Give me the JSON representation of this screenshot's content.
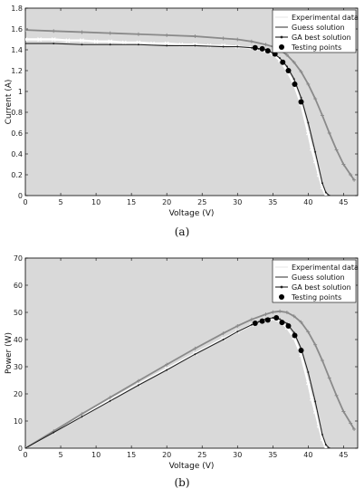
{
  "chart_data": [
    {
      "type": "line",
      "caption": "(a)",
      "xlabel": "Voltage (V)",
      "ylabel": "Current (A)",
      "xlim": [
        0,
        47
      ],
      "ylim": [
        0,
        1.8
      ],
      "xticks": [
        0,
        5,
        10,
        15,
        20,
        25,
        30,
        35,
        40,
        45
      ],
      "yticks": [
        0,
        0.2,
        0.4,
        0.6,
        0.8,
        1,
        1.2,
        1.4,
        1.6,
        1.8
      ],
      "ytick_labels": [
        "0",
        "0.2",
        "0.4",
        "0.6",
        "0.8",
        "1",
        "1.2",
        "1.4",
        "1.6",
        "1.8"
      ],
      "grid": false,
      "legend_position": "top-right",
      "series": [
        {
          "name": "Experimental data",
          "color": "#ffffff",
          "marker": "x",
          "x": [
            0,
            2,
            4,
            6,
            8,
            10,
            12,
            14,
            16,
            18,
            20,
            22,
            24,
            26,
            28,
            30,
            32,
            33,
            34,
            35,
            36,
            37,
            38,
            39,
            40,
            40.5,
            41,
            41.5,
            42,
            42.5
          ],
          "y": [
            1.5,
            1.5,
            1.5,
            1.49,
            1.49,
            1.48,
            1.48,
            1.47,
            1.47,
            1.46,
            1.46,
            1.45,
            1.45,
            1.44,
            1.44,
            1.43,
            1.42,
            1.41,
            1.39,
            1.36,
            1.3,
            1.2,
            1.07,
            0.88,
            0.6,
            0.45,
            0.33,
            0.2,
            0.08,
            0
          ]
        },
        {
          "name": "Guess solution",
          "color": "#8a8a8a",
          "marker": "+",
          "x": [
            0,
            4,
            8,
            12,
            16,
            20,
            24,
            28,
            30,
            32,
            34,
            35,
            36,
            37,
            38,
            39,
            40,
            41,
            42,
            43,
            44,
            45,
            46,
            46.5
          ],
          "y": [
            1.59,
            1.58,
            1.57,
            1.56,
            1.55,
            1.54,
            1.53,
            1.51,
            1.5,
            1.48,
            1.45,
            1.43,
            1.4,
            1.35,
            1.28,
            1.19,
            1.07,
            0.93,
            0.77,
            0.6,
            0.44,
            0.3,
            0.2,
            0.15
          ]
        },
        {
          "name": "GA best solution",
          "color": "#202020",
          "marker": "dot",
          "x": [
            0,
            4,
            8,
            12,
            16,
            20,
            24,
            28,
            30,
            32,
            33,
            34,
            35,
            36,
            37,
            38,
            39,
            40,
            41,
            42,
            42.5,
            43
          ],
          "y": [
            1.46,
            1.46,
            1.45,
            1.45,
            1.45,
            1.44,
            1.44,
            1.43,
            1.43,
            1.42,
            1.41,
            1.4,
            1.37,
            1.32,
            1.24,
            1.12,
            0.94,
            0.7,
            0.42,
            0.12,
            0.03,
            0
          ]
        },
        {
          "name": "Testing points",
          "color": "#000000",
          "marker": "circle",
          "x": [
            32.5,
            33.5,
            34.3,
            35.3,
            36.4,
            37.2,
            38.1,
            39
          ],
          "y": [
            1.42,
            1.41,
            1.39,
            1.36,
            1.28,
            1.2,
            1.07,
            0.9
          ]
        }
      ]
    },
    {
      "type": "line",
      "caption": "(b)",
      "xlabel": "Voltage (V)",
      "ylabel": "Power (W)",
      "xlim": [
        0,
        47
      ],
      "ylim": [
        0,
        70
      ],
      "xticks": [
        0,
        5,
        10,
        15,
        20,
        25,
        30,
        35,
        40,
        45
      ],
      "yticks": [
        0,
        10,
        20,
        30,
        40,
        50,
        60,
        70
      ],
      "ytick_labels": [
        "0",
        "10",
        "20",
        "30",
        "40",
        "50",
        "60",
        "70"
      ],
      "grid": false,
      "legend_position": "top-right",
      "series": [
        {
          "name": "Experimental data",
          "color": "#ffffff",
          "marker": "x",
          "x": [
            0,
            4,
            8,
            12,
            16,
            20,
            24,
            28,
            30,
            32,
            34,
            35,
            36,
            37,
            38,
            39,
            40,
            40.5,
            41,
            41.5,
            42,
            42.5
          ],
          "y": [
            0,
            6,
            11.9,
            17.8,
            23.5,
            29.2,
            34.8,
            40.3,
            42.9,
            45.4,
            47.3,
            47.6,
            46.8,
            44.4,
            40.7,
            34.3,
            24,
            18.2,
            13.5,
            8.3,
            3.4,
            0
          ]
        },
        {
          "name": "Guess solution",
          "color": "#8a8a8a",
          "marker": "+",
          "x": [
            0,
            4,
            8,
            12,
            16,
            20,
            24,
            28,
            30,
            32,
            34,
            35,
            36,
            37,
            38,
            39,
            40,
            41,
            42,
            43,
            44,
            45,
            46,
            46.5
          ],
          "y": [
            0,
            6.3,
            12.6,
            18.7,
            24.8,
            30.8,
            36.7,
            42.3,
            45,
            47.4,
            49.3,
            50.1,
            50.4,
            50,
            48.6,
            46.4,
            42.8,
            38.1,
            32.3,
            25.8,
            19.4,
            13.5,
            9.2,
            7
          ]
        },
        {
          "name": "GA best solution",
          "color": "#202020",
          "marker": "dot",
          "x": [
            0,
            4,
            8,
            12,
            16,
            20,
            24,
            28,
            30,
            32,
            33,
            34,
            35,
            36,
            37,
            38,
            39,
            40,
            41,
            42,
            42.5,
            43
          ],
          "y": [
            0,
            5.8,
            11.6,
            17.4,
            23.2,
            28.8,
            34.6,
            40,
            42.9,
            45.4,
            46.5,
            47.6,
            48,
            47.5,
            45.9,
            42.6,
            36.7,
            28,
            17.2,
            5,
            1.3,
            0
          ]
        },
        {
          "name": "Testing points",
          "color": "#000000",
          "marker": "circle",
          "x": [
            32.5,
            33.5,
            34.3,
            35.5,
            36.3,
            37.2,
            38.1,
            39
          ],
          "y": [
            46,
            46.8,
            47.2,
            48,
            46.3,
            45,
            41.5,
            36
          ]
        }
      ]
    }
  ]
}
